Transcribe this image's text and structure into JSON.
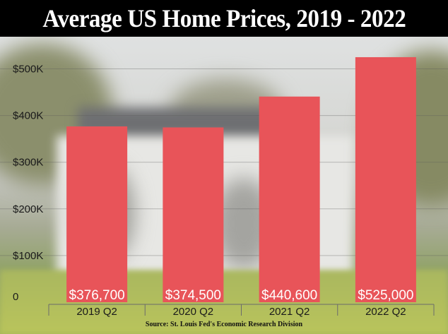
{
  "colors": {
    "bar": "#e85459",
    "header_bg": "#000000",
    "header_text": "#ffffff",
    "axis_text": "#1a1a1a"
  },
  "title": "Average US Home Prices, 2019 - 2022",
  "source": "Source: St. Louis Fed's Economic Research Division",
  "chart_data": {
    "type": "bar",
    "title": "Average US Home Prices, 2019 - 2022",
    "categories": [
      "2019 Q2",
      "2020 Q2",
      "2021 Q2",
      "2022 Q2"
    ],
    "values": [
      376700,
      374500,
      440600,
      525000
    ],
    "value_labels": [
      "$376,700",
      "$374,500",
      "$440,600",
      "$525,000"
    ],
    "ylim": [
      0,
      550000
    ],
    "yticks": [
      0,
      100000,
      200000,
      300000,
      400000,
      500000
    ],
    "ytick_labels": [
      "0",
      "$100K",
      "$200K",
      "$300K",
      "$400K",
      "$500K"
    ],
    "grid": true,
    "xlabel": "",
    "ylabel": ""
  }
}
